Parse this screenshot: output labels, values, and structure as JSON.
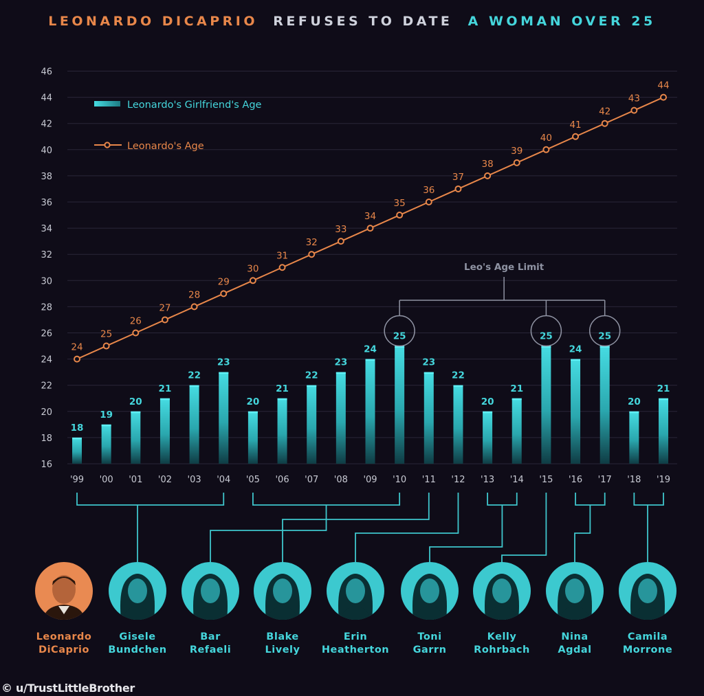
{
  "title": {
    "part1": "LEONARDO DICAPRIO",
    "part2": "REFUSES TO DATE",
    "part3": "A WOMAN OVER 25"
  },
  "colors": {
    "background": "#0f0c18",
    "bar": "#3fd3d9",
    "line": "#e8874a",
    "grid": "#2a2638",
    "axis_text": "#c9cbd4",
    "connector": "#3fc6cc",
    "limit_bracket": "#8f93a3"
  },
  "legend": {
    "bar_label": "Leonardo's Girlfriend's Age",
    "line_label": "Leonardo's Age"
  },
  "annotation": {
    "label": "Leo's Age Limit"
  },
  "chart_data": {
    "type": "bar",
    "categories": [
      "'99",
      "'00",
      "'01",
      "'02",
      "'03",
      "'04",
      "'05",
      "'06",
      "'07",
      "'08",
      "'09",
      "'10",
      "'11",
      "'12",
      "'13",
      "'14",
      "'15",
      "'16",
      "'17",
      "'18",
      "'19"
    ],
    "series": [
      {
        "name": "Leonardo's Girlfriend's Age",
        "type": "bar",
        "values": [
          18,
          19,
          20,
          21,
          22,
          23,
          20,
          21,
          22,
          23,
          24,
          25,
          23,
          22,
          20,
          21,
          25,
          24,
          25,
          20,
          21
        ]
      },
      {
        "name": "Leonardo's Age",
        "type": "line",
        "values": [
          24,
          25,
          26,
          27,
          28,
          29,
          30,
          31,
          32,
          33,
          34,
          35,
          36,
          37,
          38,
          39,
          40,
          41,
          42,
          43,
          44
        ]
      }
    ],
    "yticks": [
      16,
      18,
      20,
      22,
      24,
      26,
      28,
      30,
      32,
      34,
      36,
      38,
      40,
      42,
      44,
      46
    ],
    "ylim": [
      16,
      46
    ],
    "grid": true,
    "legend_position": "top-left",
    "age_limit_highlight": [
      "'10",
      "'15",
      "'17"
    ],
    "xlabel": "",
    "ylabel": ""
  },
  "people": [
    {
      "first": "Leonardo",
      "last": "DiCaprio",
      "highlight": true
    },
    {
      "first": "Gisele",
      "last": "Bundchen",
      "highlight": false
    },
    {
      "first": "Bar",
      "last": "Refaeli",
      "highlight": false
    },
    {
      "first": "Blake",
      "last": "Lively",
      "highlight": false
    },
    {
      "first": "Erin",
      "last": "Heatherton",
      "highlight": false
    },
    {
      "first": "Toni",
      "last": "Garrn",
      "highlight": false
    },
    {
      "first": "Kelly",
      "last": "Rohrbach",
      "highlight": false
    },
    {
      "first": "Nina",
      "last": "Agdal",
      "highlight": false
    },
    {
      "first": "Camila",
      "last": "Morrone",
      "highlight": false
    }
  ],
  "credit": "© u/TrustLittleBrother"
}
